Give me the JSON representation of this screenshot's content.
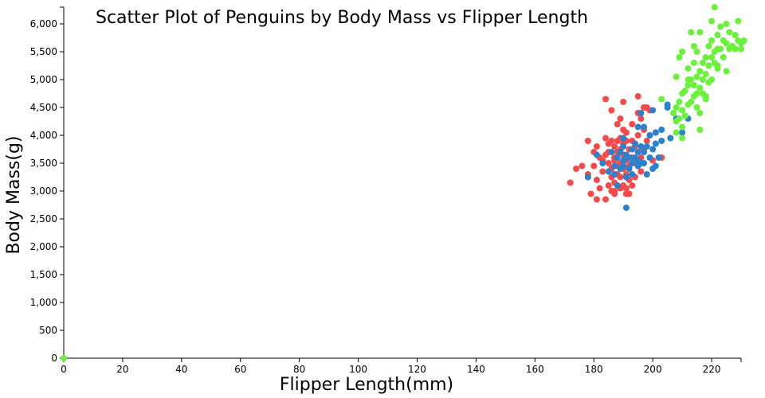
{
  "chart_data": {
    "type": "scatter",
    "title": "Scatter Plot of Penguins by Body Mass vs Flipper Length",
    "xlabel": "Flipper Length(mm)",
    "ylabel": "Body Mass(g)",
    "xlim": [
      0,
      230
    ],
    "ylim": [
      0,
      6300
    ],
    "x_ticks": [
      0,
      20,
      40,
      60,
      80,
      100,
      120,
      140,
      160,
      180,
      200,
      220
    ],
    "x_tick_labels": [
      "0",
      "20",
      "40",
      "60",
      "80",
      "100",
      "120",
      "140",
      "160",
      "180",
      "200",
      "220"
    ],
    "y_ticks": [
      0,
      500,
      1000,
      1500,
      2000,
      2500,
      3000,
      3500,
      4000,
      4500,
      5000,
      5500,
      6000
    ],
    "y_tick_labels": [
      "0",
      "500",
      "1,000",
      "1,500",
      "2,000",
      "2,500",
      "3,000",
      "3,500",
      "4,000",
      "4,500",
      "5,000",
      "5,500",
      "6,000"
    ],
    "grid": false,
    "series": [
      {
        "color": "#f44a4a",
        "points": [
          [
            172,
            3150
          ],
          [
            174,
            3400
          ],
          [
            176,
            3450
          ],
          [
            178,
            3300
          ],
          [
            178,
            3900
          ],
          [
            179,
            2950
          ],
          [
            180,
            3700
          ],
          [
            180,
            3450
          ],
          [
            181,
            3800
          ],
          [
            181,
            3200
          ],
          [
            181,
            2850
          ],
          [
            182,
            3600
          ],
          [
            182,
            3050
          ],
          [
            183,
            3350
          ],
          [
            184,
            3950
          ],
          [
            184,
            3650
          ],
          [
            184,
            2850
          ],
          [
            184,
            4650
          ],
          [
            185,
            3100
          ],
          [
            185,
            3700
          ],
          [
            185,
            3500
          ],
          [
            186,
            3400
          ],
          [
            186,
            3250
          ],
          [
            186,
            3000
          ],
          [
            186,
            4450
          ],
          [
            187,
            3800
          ],
          [
            187,
            3600
          ],
          [
            187,
            3550
          ],
          [
            187,
            3150
          ],
          [
            187,
            2950
          ],
          [
            188,
            3900
          ],
          [
            188,
            3700
          ],
          [
            188,
            3450
          ],
          [
            188,
            3300
          ],
          [
            188,
            4200
          ],
          [
            189,
            3950
          ],
          [
            189,
            3750
          ],
          [
            189,
            3500
          ],
          [
            189,
            3250
          ],
          [
            189,
            3050
          ],
          [
            190,
            4100
          ],
          [
            190,
            3850
          ],
          [
            190,
            3650
          ],
          [
            190,
            3400
          ],
          [
            190,
            3100
          ],
          [
            190,
            4600
          ],
          [
            191,
            3900
          ],
          [
            191,
            3550
          ],
          [
            191,
            3300
          ],
          [
            191,
            4050
          ],
          [
            191,
            3050
          ],
          [
            192,
            3750
          ],
          [
            192,
            3450
          ],
          [
            192,
            3200
          ],
          [
            192,
            2950
          ],
          [
            193,
            3900
          ],
          [
            193,
            3600
          ],
          [
            193,
            4200
          ],
          [
            194,
            3800
          ],
          [
            194,
            3500
          ],
          [
            194,
            3250
          ],
          [
            195,
            4000
          ],
          [
            195,
            3700
          ],
          [
            195,
            3450
          ],
          [
            195,
            4400
          ],
          [
            196,
            3600
          ],
          [
            196,
            4300
          ],
          [
            196,
            3350
          ],
          [
            197,
            3750
          ],
          [
            197,
            4100
          ],
          [
            198,
            3900
          ],
          [
            198,
            4500
          ],
          [
            199,
            4000
          ],
          [
            199,
            4450
          ],
          [
            200,
            3550
          ],
          [
            201,
            4050
          ],
          [
            203,
            3600
          ],
          [
            185,
            3850
          ],
          [
            187,
            3000
          ],
          [
            189,
            4300
          ],
          [
            191,
            2950
          ],
          [
            193,
            3100
          ],
          [
            195,
            4700
          ],
          [
            197,
            4500
          ],
          [
            183,
            3550
          ],
          [
            186,
            3900
          ]
        ]
      },
      {
        "color": "#2a82cf",
        "points": [
          [
            178,
            3250
          ],
          [
            181,
            3650
          ],
          [
            183,
            3500
          ],
          [
            185,
            3350
          ],
          [
            186,
            3700
          ],
          [
            187,
            3450
          ],
          [
            187,
            3300
          ],
          [
            188,
            3600
          ],
          [
            188,
            3100
          ],
          [
            189,
            3700
          ],
          [
            189,
            3400
          ],
          [
            190,
            3550
          ],
          [
            190,
            3800
          ],
          [
            190,
            3450
          ],
          [
            191,
            3650
          ],
          [
            191,
            3250
          ],
          [
            191,
            2700
          ],
          [
            192,
            3600
          ],
          [
            192,
            3400
          ],
          [
            193,
            3750
          ],
          [
            193,
            3500
          ],
          [
            193,
            3300
          ],
          [
            194,
            3850
          ],
          [
            194,
            3600
          ],
          [
            195,
            3550
          ],
          [
            195,
            3700
          ],
          [
            195,
            3450
          ],
          [
            195,
            4150
          ],
          [
            196,
            3800
          ],
          [
            196,
            3500
          ],
          [
            196,
            4400
          ],
          [
            197,
            4150
          ],
          [
            197,
            3700
          ],
          [
            197,
            3500
          ],
          [
            198,
            3800
          ],
          [
            198,
            3300
          ],
          [
            199,
            3600
          ],
          [
            199,
            4000
          ],
          [
            200,
            3750
          ],
          [
            200,
            3400
          ],
          [
            201,
            4050
          ],
          [
            201,
            3850
          ],
          [
            201,
            3450
          ],
          [
            202,
            3600
          ],
          [
            203,
            4100
          ],
          [
            203,
            3900
          ],
          [
            205,
            4500
          ],
          [
            205,
            4550
          ],
          [
            206,
            3950
          ],
          [
            208,
            4300
          ],
          [
            210,
            4050
          ],
          [
            212,
            4300
          ],
          [
            200,
            4450
          ],
          [
            190,
            3950
          ]
        ]
      },
      {
        "color": "#6af23a",
        "points": [
          [
            0,
            0
          ],
          [
            203,
            4650
          ],
          [
            207,
            4400
          ],
          [
            208,
            4050
          ],
          [
            208,
            4250
          ],
          [
            208,
            4500
          ],
          [
            208,
            5050
          ],
          [
            209,
            4300
          ],
          [
            209,
            4600
          ],
          [
            209,
            5400
          ],
          [
            210,
            3950
          ],
          [
            210,
            4150
          ],
          [
            210,
            4450
          ],
          [
            210,
            4750
          ],
          [
            210,
            5500
          ],
          [
            211,
            4350
          ],
          [
            211,
            4800
          ],
          [
            212,
            4550
          ],
          [
            212,
            4900
          ],
          [
            212,
            5200
          ],
          [
            213,
            4600
          ],
          [
            213,
            5000
          ],
          [
            213,
            5850
          ],
          [
            214,
            4700
          ],
          [
            214,
            4900
          ],
          [
            214,
            5300
          ],
          [
            215,
            4750
          ],
          [
            215,
            5050
          ],
          [
            215,
            5500
          ],
          [
            215,
            4500
          ],
          [
            216,
            4100
          ],
          [
            216,
            4850
          ],
          [
            216,
            5150
          ],
          [
            216,
            5850
          ],
          [
            216,
            4400
          ],
          [
            217,
            4750
          ],
          [
            217,
            5000
          ],
          [
            217,
            5300
          ],
          [
            218,
            4700
          ],
          [
            218,
            5100
          ],
          [
            218,
            5400
          ],
          [
            219,
            4950
          ],
          [
            219,
            5250
          ],
          [
            219,
            5600
          ],
          [
            220,
            5000
          ],
          [
            220,
            5400
          ],
          [
            220,
            5700
          ],
          [
            220,
            6050
          ],
          [
            221,
            5300
          ],
          [
            221,
            5500
          ],
          [
            221,
            6300
          ],
          [
            222,
            5250
          ],
          [
            222,
            5800
          ],
          [
            222,
            5200
          ],
          [
            223,
            5550
          ],
          [
            223,
            5950
          ],
          [
            224,
            5400
          ],
          [
            224,
            5700
          ],
          [
            225,
            5650
          ],
          [
            225,
            6000
          ],
          [
            226,
            5550
          ],
          [
            226,
            5850
          ],
          [
            227,
            5600
          ],
          [
            228,
            5800
          ],
          [
            228,
            5550
          ],
          [
            229,
            5700
          ],
          [
            229,
            6050
          ],
          [
            230,
            5650
          ],
          [
            230,
            5550
          ],
          [
            231,
            5700
          ],
          [
            212,
            5000
          ],
          [
            214,
            5600
          ],
          [
            218,
            4650
          ],
          [
            222,
            5550
          ],
          [
            225,
            5150
          ]
        ]
      }
    ]
  }
}
